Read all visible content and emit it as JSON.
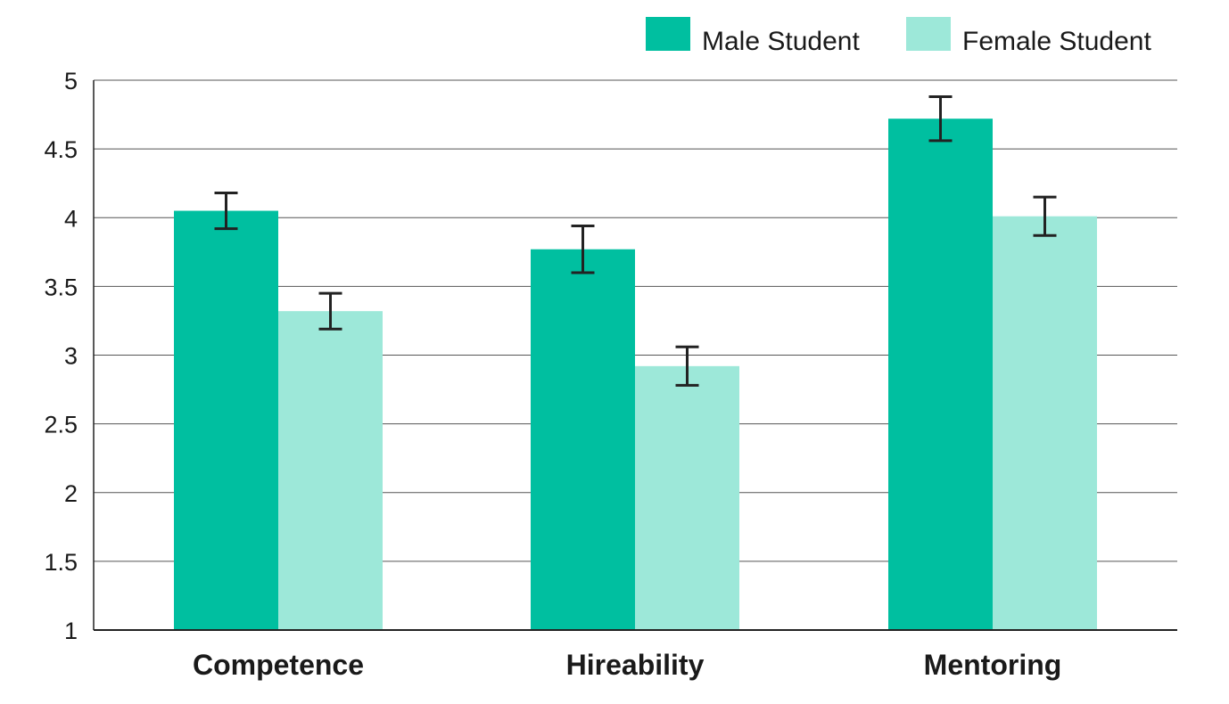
{
  "chart_data": {
    "type": "bar",
    "categories": [
      "Competence",
      "Hireability",
      "Mentoring"
    ],
    "series": [
      {
        "name": "Male Student",
        "values": [
          4.05,
          3.77,
          4.72
        ],
        "error": [
          0.13,
          0.17,
          0.16
        ],
        "color": "#00bfa0"
      },
      {
        "name": "Female Student",
        "values": [
          3.32,
          2.92,
          4.01
        ],
        "error": [
          0.13,
          0.14,
          0.14
        ],
        "color": "#9de8d9"
      }
    ],
    "yticks": [
      "1",
      "1.5",
      "2",
      "2.5",
      "3",
      "3.5",
      "4",
      "4.5",
      "5"
    ],
    "ylim": [
      1,
      5
    ],
    "grid": true,
    "legend_position": "top-right"
  }
}
